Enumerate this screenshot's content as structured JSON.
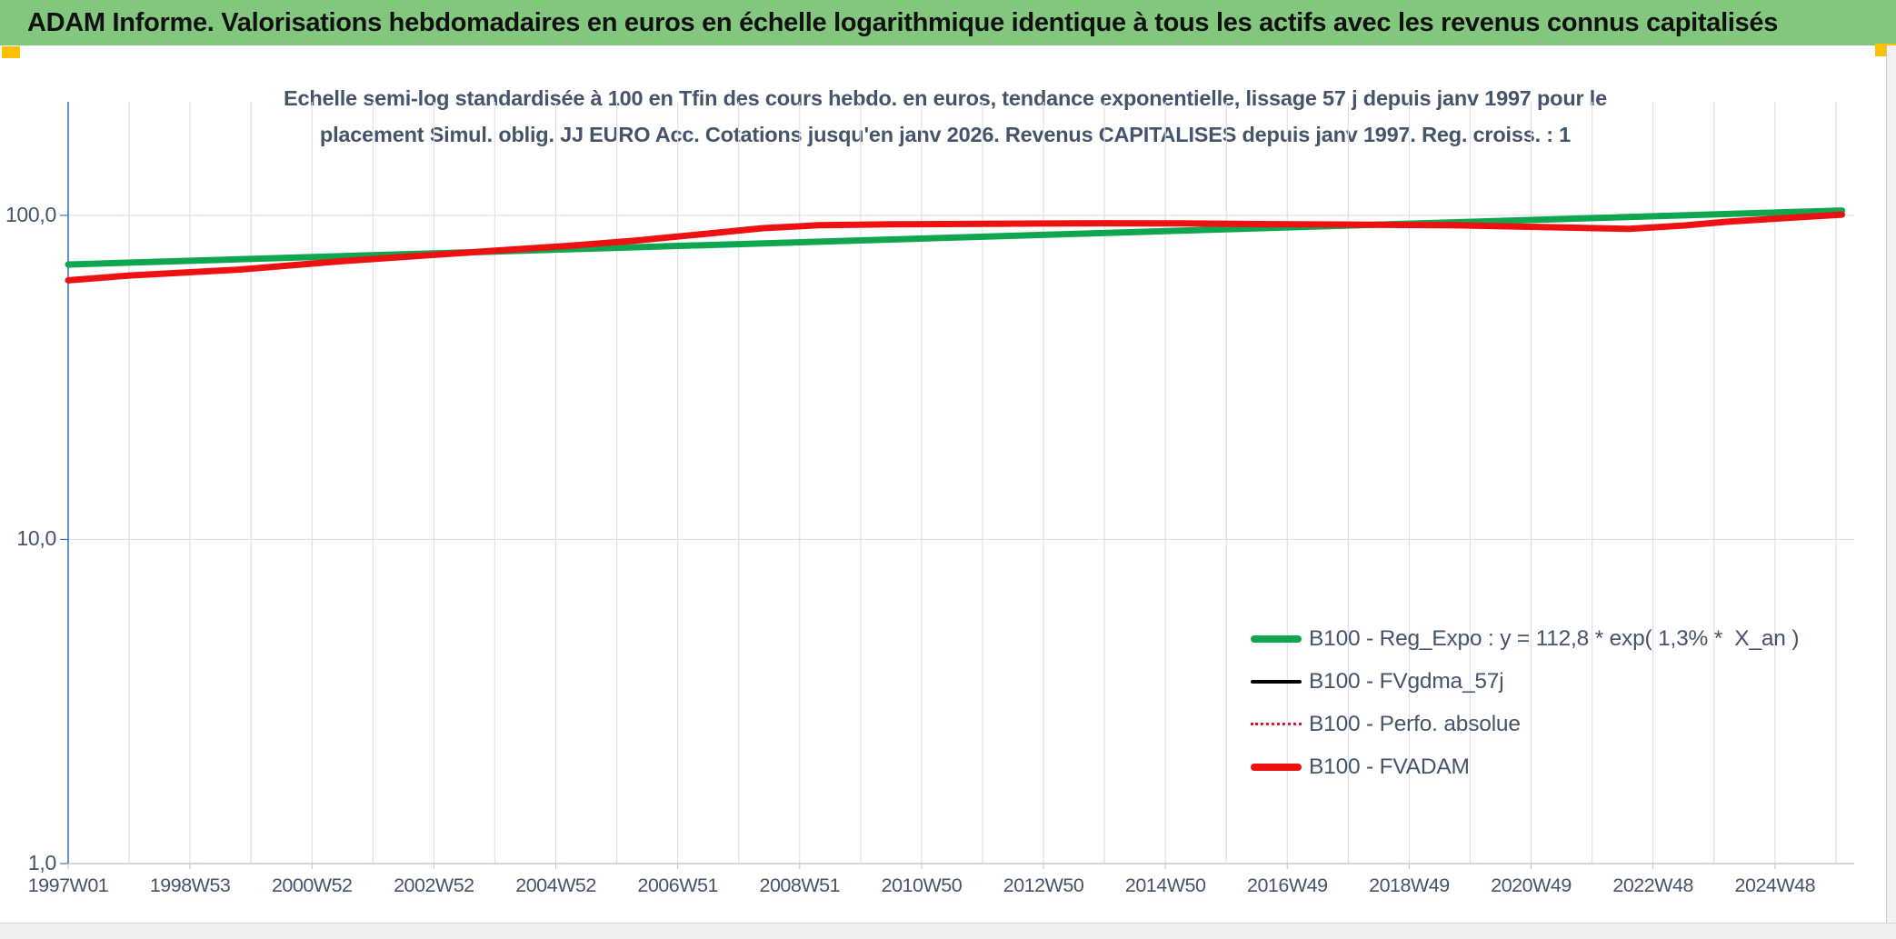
{
  "header": {
    "title": "ADAM Informe. Valorisations hebdomadaires en euros en échelle logarithmique identique à tous les actifs avec les revenus connus capitalisés"
  },
  "colors": {
    "header_bg": "#82C77D",
    "header_text": "#111111",
    "accent_yellow": "#FFC000",
    "text": "#44546A",
    "grid": "#DCE2EC",
    "axis_left": "#4472C4",
    "axis_bottom": "#C3CAD6",
    "plot_bg": "#FFFFFF"
  },
  "chart_data": {
    "type": "line",
    "title_lines": [
      "Echelle semi-log standardisée à 100 en Tfin des cours hebdo. en euros, tendance exponentielle, lissage 57 j depuis janv 1997 pour le",
      "placement Simul. oblig. JJ EURO Acc. Cotations jusqu'en janv 2026. Revenus CAPITALISES depuis janv 1997. Reg. croiss. : 1"
    ],
    "x_axis": {
      "min": 1997.0,
      "max": 2026.3,
      "grid_step_years": 1,
      "tick_labels": [
        {
          "label": "1997W01",
          "year": 1997
        },
        {
          "label": "1998W53",
          "year": 1999
        },
        {
          "label": "2000W52",
          "year": 2001
        },
        {
          "label": "2002W52",
          "year": 2003
        },
        {
          "label": "2004W52",
          "year": 2005
        },
        {
          "label": "2006W51",
          "year": 2007
        },
        {
          "label": "2008W51",
          "year": 2009
        },
        {
          "label": "2010W50",
          "year": 2011
        },
        {
          "label": "2012W50",
          "year": 2013
        },
        {
          "label": "2014W50",
          "year": 2015
        },
        {
          "label": "2016W49",
          "year": 2017
        },
        {
          "label": "2018W49",
          "year": 2019
        },
        {
          "label": "2020W49",
          "year": 2021
        },
        {
          "label": "2022W48",
          "year": 2023
        },
        {
          "label": "2024W48",
          "year": 2025
        }
      ]
    },
    "y_axis": {
      "scale": "log",
      "min": 1,
      "max": 224,
      "ticks": [
        {
          "label": "100,0",
          "value": 100
        },
        {
          "label": "10,0",
          "value": 10
        },
        {
          "label": "1,0",
          "value": 1
        }
      ]
    },
    "legend_position": "inside-right-lower",
    "series": [
      {
        "name": "B100 - Reg_Expo : y = 112,8 * exp( 1,3% *  X_an )",
        "color": "#0FA64F",
        "width": 7,
        "dash": null,
        "points": [
          [
            1997.0,
            70.5
          ],
          [
            2026.1,
            103.5
          ]
        ]
      },
      {
        "name": "B100 - FVgdma_57j",
        "color": "#000000",
        "width": 3,
        "dash": null,
        "points": [
          [
            1997.0,
            63.0
          ],
          [
            1998.0,
            65.2
          ],
          [
            1999.8,
            68.0
          ],
          [
            2001.5,
            72.2
          ],
          [
            2002.7,
            74.8
          ],
          [
            2004.0,
            77.8
          ],
          [
            2005.2,
            80.5
          ],
          [
            2006.3,
            83.5
          ],
          [
            2007.4,
            87.5
          ],
          [
            2008.4,
            91.3
          ],
          [
            2009.3,
            93.2
          ],
          [
            2010.5,
            93.8
          ],
          [
            2012.3,
            94.2
          ],
          [
            2014.0,
            94.5
          ],
          [
            2015.3,
            94.4
          ],
          [
            2016.5,
            94.0
          ],
          [
            2017.9,
            93.7
          ],
          [
            2019.7,
            93.2
          ],
          [
            2021.0,
            92.2
          ],
          [
            2022.6,
            90.8
          ],
          [
            2023.5,
            93.0
          ],
          [
            2024.2,
            95.5
          ],
          [
            2025.2,
            98.2
          ],
          [
            2026.1,
            100.5
          ]
        ]
      },
      {
        "name": "B100 - Perfo. absolue",
        "color": "#E8112D",
        "width": 2.5,
        "dash": "2 4",
        "points": [
          [
            1997.0,
            63.0
          ],
          [
            1998.0,
            65.2
          ],
          [
            1999.8,
            68.0
          ],
          [
            2001.5,
            72.2
          ],
          [
            2002.7,
            74.8
          ],
          [
            2004.0,
            77.8
          ],
          [
            2005.2,
            80.5
          ],
          [
            2006.3,
            83.5
          ],
          [
            2007.4,
            87.5
          ],
          [
            2008.4,
            91.3
          ],
          [
            2009.3,
            93.2
          ],
          [
            2010.5,
            93.8
          ],
          [
            2012.3,
            94.2
          ],
          [
            2014.0,
            94.5
          ],
          [
            2015.3,
            94.4
          ],
          [
            2016.5,
            94.0
          ],
          [
            2017.9,
            93.7
          ],
          [
            2019.7,
            93.2
          ],
          [
            2021.0,
            92.2
          ],
          [
            2022.6,
            90.8
          ],
          [
            2023.5,
            93.0
          ],
          [
            2024.2,
            95.5
          ],
          [
            2025.2,
            98.2
          ],
          [
            2026.1,
            100.5
          ]
        ]
      },
      {
        "name": "B100 - FVADAM",
        "color": "#ED1111",
        "width": 7,
        "dash": null,
        "points": [
          [
            1997.0,
            63.0
          ],
          [
            1998.0,
            65.2
          ],
          [
            1999.8,
            68.0
          ],
          [
            2001.5,
            72.2
          ],
          [
            2002.7,
            74.8
          ],
          [
            2004.0,
            77.8
          ],
          [
            2005.2,
            80.5
          ],
          [
            2006.3,
            83.5
          ],
          [
            2007.4,
            87.5
          ],
          [
            2008.4,
            91.3
          ],
          [
            2009.3,
            93.2
          ],
          [
            2010.5,
            93.8
          ],
          [
            2012.3,
            94.2
          ],
          [
            2014.0,
            94.5
          ],
          [
            2015.3,
            94.4
          ],
          [
            2016.5,
            94.0
          ],
          [
            2017.9,
            93.7
          ],
          [
            2019.7,
            93.2
          ],
          [
            2021.0,
            92.2
          ],
          [
            2022.6,
            90.8
          ],
          [
            2023.5,
            93.0
          ],
          [
            2024.2,
            95.5
          ],
          [
            2025.2,
            98.2
          ],
          [
            2026.1,
            100.5
          ]
        ]
      }
    ]
  }
}
